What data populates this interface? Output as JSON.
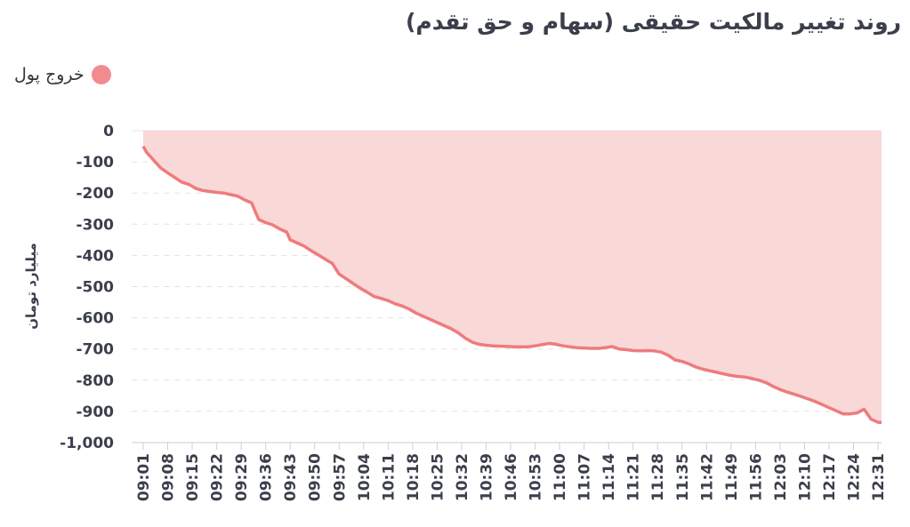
{
  "chart_data": {
    "type": "area",
    "title": "روند تغییر مالکیت حقیقی (سهام و حق تقدم)",
    "ylabel": "میلیارد تومان",
    "xlabel": "",
    "ylim": [
      -1000,
      0
    ],
    "yticks": [
      0,
      -100,
      -200,
      -300,
      -400,
      -500,
      -600,
      -700,
      -800,
      -900,
      -1000
    ],
    "ytick_labels": [
      "0",
      "-100",
      "-200",
      "-300",
      "-400",
      "-500",
      "-600",
      "-700",
      "-800",
      "-900",
      "-1,000"
    ],
    "xtick_labels": [
      "09:01",
      "09:08",
      "09:15",
      "09:22",
      "09:29",
      "09:36",
      "09:43",
      "09:50",
      "09:57",
      "10:04",
      "10:11",
      "10:18",
      "10:25",
      "10:32",
      "10:39",
      "10:46",
      "10:53",
      "11:00",
      "11:07",
      "11:14",
      "11:21",
      "11:28",
      "11:35",
      "11:42",
      "11:49",
      "11:56",
      "12:03",
      "12:10",
      "12:17",
      "12:24",
      "12:31"
    ],
    "legend_position": "top-left",
    "grid": true,
    "colors": {
      "line": "#ee7b7d",
      "fill": "#f9d6d6"
    },
    "series": [
      {
        "name": "خروج پول",
        "points": [
          [
            "09:01",
            -50
          ],
          [
            "09:02",
            -70
          ],
          [
            "09:04",
            -95
          ],
          [
            "09:06",
            -120
          ],
          [
            "09:08",
            -135
          ],
          [
            "09:10",
            -150
          ],
          [
            "09:12",
            -165
          ],
          [
            "09:14",
            -172
          ],
          [
            "09:16",
            -185
          ],
          [
            "09:18",
            -192
          ],
          [
            "09:20",
            -195
          ],
          [
            "09:22",
            -198
          ],
          [
            "09:24",
            -200
          ],
          [
            "09:26",
            -205
          ],
          [
            "09:28",
            -210
          ],
          [
            "09:30",
            -222
          ],
          [
            "09:32",
            -232
          ],
          [
            "09:34",
            -285
          ],
          [
            "09:36",
            -295
          ],
          [
            "09:38",
            -302
          ],
          [
            "09:40",
            -315
          ],
          [
            "09:42",
            -325
          ],
          [
            "09:43",
            -350
          ],
          [
            "09:45",
            -360
          ],
          [
            "09:47",
            -370
          ],
          [
            "09:49",
            -385
          ],
          [
            "09:51",
            -398
          ],
          [
            "09:53",
            -412
          ],
          [
            "09:55",
            -425
          ],
          [
            "09:57",
            -460
          ],
          [
            "09:59",
            -475
          ],
          [
            "10:01",
            -490
          ],
          [
            "10:03",
            -505
          ],
          [
            "10:05",
            -518
          ],
          [
            "10:07",
            -532
          ],
          [
            "10:09",
            -538
          ],
          [
            "10:11",
            -545
          ],
          [
            "10:13",
            -555
          ],
          [
            "10:15",
            -562
          ],
          [
            "10:17",
            -572
          ],
          [
            "10:19",
            -585
          ],
          [
            "10:21",
            -595
          ],
          [
            "10:23",
            -605
          ],
          [
            "10:25",
            -615
          ],
          [
            "10:27",
            -625
          ],
          [
            "10:29",
            -635
          ],
          [
            "10:31",
            -648
          ],
          [
            "10:33",
            -665
          ],
          [
            "10:35",
            -678
          ],
          [
            "10:37",
            -685
          ],
          [
            "10:39",
            -688
          ],
          [
            "10:41",
            -690
          ],
          [
            "10:43",
            -691
          ],
          [
            "10:45",
            -692
          ],
          [
            "10:47",
            -693
          ],
          [
            "10:49",
            -693
          ],
          [
            "10:51",
            -693
          ],
          [
            "10:53",
            -690
          ],
          [
            "10:55",
            -686
          ],
          [
            "10:57",
            -682
          ],
          [
            "10:59",
            -685
          ],
          [
            "11:01",
            -690
          ],
          [
            "11:03",
            -693
          ],
          [
            "11:05",
            -696
          ],
          [
            "11:07",
            -697
          ],
          [
            "11:09",
            -698
          ],
          [
            "11:11",
            -698
          ],
          [
            "11:13",
            -696
          ],
          [
            "11:15",
            -692
          ],
          [
            "11:17",
            -700
          ],
          [
            "11:19",
            -702
          ],
          [
            "11:21",
            -705
          ],
          [
            "11:23",
            -706
          ],
          [
            "11:25",
            -705
          ],
          [
            "11:27",
            -706
          ],
          [
            "11:29",
            -710
          ],
          [
            "11:31",
            -720
          ],
          [
            "11:33",
            -735
          ],
          [
            "11:35",
            -740
          ],
          [
            "11:37",
            -748
          ],
          [
            "11:39",
            -758
          ],
          [
            "11:41",
            -765
          ],
          [
            "11:43",
            -770
          ],
          [
            "11:45",
            -775
          ],
          [
            "11:47",
            -780
          ],
          [
            "11:49",
            -785
          ],
          [
            "11:51",
            -788
          ],
          [
            "11:53",
            -790
          ],
          [
            "11:55",
            -795
          ],
          [
            "11:57",
            -800
          ],
          [
            "11:59",
            -808
          ],
          [
            "12:01",
            -820
          ],
          [
            "12:03",
            -830
          ],
          [
            "12:05",
            -838
          ],
          [
            "12:07",
            -845
          ],
          [
            "12:09",
            -852
          ],
          [
            "12:11",
            -860
          ],
          [
            "12:13",
            -868
          ],
          [
            "12:15",
            -878
          ],
          [
            "12:17",
            -888
          ],
          [
            "12:19",
            -898
          ],
          [
            "12:21",
            -908
          ],
          [
            "12:23",
            -908
          ],
          [
            "12:25",
            -905
          ],
          [
            "12:27",
            -893
          ],
          [
            "12:29",
            -925
          ],
          [
            "12:31",
            -935
          ],
          [
            "12:32",
            -935
          ]
        ]
      }
    ]
  }
}
